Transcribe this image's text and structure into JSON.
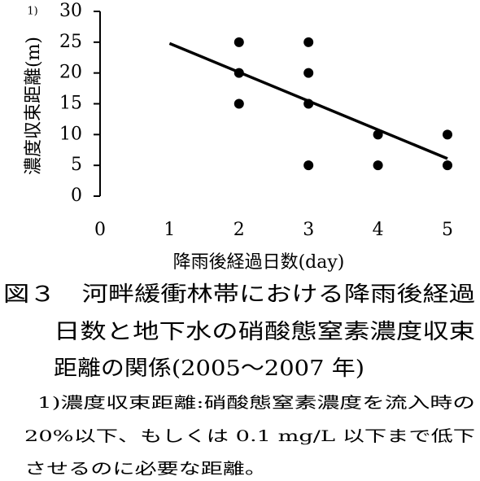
{
  "chart_data": {
    "type": "scatter",
    "ylabel": "濃度収束距離(m)",
    "ylabel_note": "1)",
    "xlabel": "降雨後経過日数(day)",
    "series": [
      {
        "color": "#000000",
        "x": [
          2,
          2,
          2,
          3,
          3,
          3,
          3,
          4,
          4,
          5,
          5
        ],
        "values": [
          25,
          20,
          15,
          25,
          20,
          15,
          5,
          10,
          5,
          10,
          5
        ]
      }
    ],
    "trendline": {
      "x": [
        1,
        5
      ],
      "y": [
        24.8,
        6.1
      ],
      "color": "#000000"
    },
    "xlim": [
      0,
      5
    ],
    "xticks": [
      0,
      1,
      2,
      3,
      4,
      5
    ],
    "ylim": [
      0,
      30
    ],
    "yticks": [
      0,
      5,
      10,
      15,
      20,
      25,
      30
    ],
    "grid": false
  },
  "caption": [
    "図３　河畔緩衝林帯における降雨後経過",
    "日数と地下水の硝酸態窒素濃度収束",
    "距離の関係(2005～2007 年)"
  ],
  "footnote": [
    "1)濃度収束距離:硝酸態窒素濃度を流入時の",
    "20%以下、もしくは 0.1 mg/L 以下まで低下",
    "させるのに必要な距離。"
  ]
}
